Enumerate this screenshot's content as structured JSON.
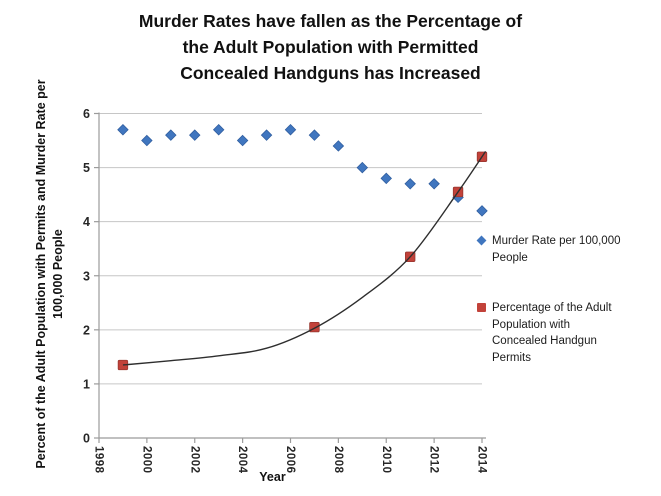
{
  "title": "Murder Rates have fallen as the Percentage of\nthe Adult Population with Permitted\nConcealed Handguns has Increased",
  "axes": {
    "y_label": "Percent of the Adult Population with Permits and Murder Rate per\n100,000 People",
    "x_label": "Year",
    "y_ticks": [
      0,
      1,
      2,
      3,
      4,
      5,
      6
    ],
    "x_ticks": [
      1998,
      2000,
      2002,
      2004,
      2006,
      2008,
      2010,
      2012,
      2014
    ]
  },
  "legend": {
    "items": [
      {
        "label": "Murder Rate per 100,000\nPeople",
        "marker": "diamond",
        "color": "#4076BF"
      },
      {
        "label": "Percentage of the Adult\nPopulation with\nConcealed Handgun\nPermits",
        "marker": "square",
        "color": "#C2423A"
      }
    ]
  },
  "colors": {
    "series_blue": "#4076BF",
    "series_blue_edge": "#2F5D9E",
    "series_red": "#C2423A",
    "series_red_edge": "#96352E",
    "gridline": "#C6C6C6",
    "axis": "#9B9B9B",
    "trend_line": "#2E2E2E",
    "tick_text": "#262626"
  },
  "chart_data": {
    "type": "scatter",
    "title": "Murder Rates have fallen as the Percentage of the Adult Population with Permitted Concealed Handguns has Increased",
    "xlabel": "Year",
    "ylabel": "Percent of the Adult Population with Permits and Murder Rate per 100,000 People",
    "xlim": [
      1998,
      2014
    ],
    "ylim": [
      0,
      6
    ],
    "grid": "horizontal",
    "legend_position": "right",
    "series": [
      {
        "name": "Murder Rate per 100,000 People",
        "marker": "diamond",
        "color": "#4076BF",
        "x": [
          1999,
          2000,
          2001,
          2002,
          2003,
          2004,
          2005,
          2006,
          2007,
          2008,
          2009,
          2010,
          2011,
          2012,
          2013,
          2014
        ],
        "y": [
          5.7,
          5.5,
          5.6,
          5.6,
          5.7,
          5.5,
          5.6,
          5.7,
          5.6,
          5.4,
          5.0,
          4.8,
          4.7,
          4.7,
          4.45,
          4.2
        ]
      },
      {
        "name": "Percentage of the Adult Population with Concealed Handgun Permits",
        "marker": "square",
        "color": "#C2423A",
        "x": [
          1999,
          2007,
          2011,
          2013,
          2014
        ],
        "y": [
          1.35,
          2.05,
          3.35,
          4.55,
          5.2
        ],
        "trend_curve": [
          [
            1999,
            1.35
          ],
          [
            2001,
            1.43
          ],
          [
            2003,
            1.52
          ],
          [
            2005,
            1.66
          ],
          [
            2007,
            2.03
          ],
          [
            2009,
            2.6
          ],
          [
            2011,
            3.35
          ],
          [
            2013,
            4.55
          ],
          [
            2014.15,
            5.3
          ]
        ]
      }
    ]
  }
}
